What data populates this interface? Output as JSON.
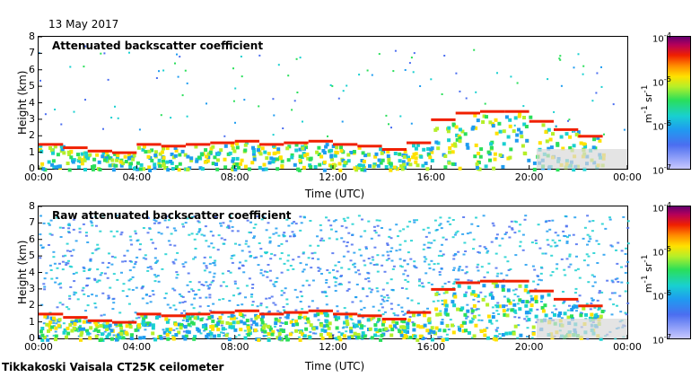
{
  "header": {
    "date": "13 May 2017"
  },
  "footer": {
    "site": "Tikkakoski Vaisala CT25K ceilometer"
  },
  "chart_data": [
    {
      "type": "heatmap",
      "title": "Attenuated backscatter coefficient",
      "xlabel": "Time (UTC)",
      "ylabel": "Height (km)",
      "xticks": [
        "00:00",
        "04:00",
        "08:00",
        "12:00",
        "16:00",
        "20:00",
        "00:00"
      ],
      "yticks": [
        "0",
        "1",
        "2",
        "3",
        "4",
        "5",
        "6",
        "7",
        "8"
      ],
      "xlim_hours": [
        0,
        24
      ],
      "ylim_km": [
        0,
        8
      ],
      "colorbar": {
        "ticks": [
          "10-4",
          "10-5",
          "10-6",
          "10-7"
        ],
        "unit": "m-1 sr-1",
        "range": [
          1e-07,
          0.0001
        ],
        "scale": "log"
      },
      "cloud_base_km": [
        [
          0.5,
          1.5
        ],
        [
          1.5,
          1.3
        ],
        [
          2.5,
          1.1
        ],
        [
          3.5,
          1.0
        ],
        [
          4.5,
          1.5
        ],
        [
          5.5,
          1.4
        ],
        [
          6.5,
          1.5
        ],
        [
          7.5,
          1.6
        ],
        [
          8.5,
          1.7
        ],
        [
          9.5,
          1.5
        ],
        [
          10.5,
          1.6
        ],
        [
          11.5,
          1.7
        ],
        [
          12.5,
          1.5
        ],
        [
          13.5,
          1.4
        ],
        [
          14.5,
          1.2
        ],
        [
          15.5,
          1.6
        ],
        [
          16.5,
          3.0
        ],
        [
          17.5,
          3.4
        ],
        [
          18.5,
          3.5
        ],
        [
          19.5,
          3.5
        ],
        [
          20.5,
          2.9
        ],
        [
          21.5,
          2.4
        ],
        [
          22.5,
          2.0
        ]
      ]
    },
    {
      "type": "heatmap",
      "title": "Raw attenuated backscatter coefficient",
      "xlabel": "Time (UTC)",
      "ylabel": "Height (km)",
      "xticks": [
        "00:00",
        "04:00",
        "08:00",
        "12:00",
        "16:00",
        "20:00",
        "00:00"
      ],
      "yticks": [
        "0",
        "1",
        "2",
        "3",
        "4",
        "5",
        "6",
        "7",
        "8"
      ],
      "xlim_hours": [
        0,
        24
      ],
      "ylim_km": [
        0,
        8
      ],
      "colorbar": {
        "ticks": [
          "10-4",
          "10-5",
          "10-6",
          "10-7"
        ],
        "unit": "m-1 sr-1",
        "range": [
          1e-07,
          0.0001
        ],
        "scale": "log"
      },
      "cloud_base_km": [
        [
          0.5,
          1.5
        ],
        [
          1.5,
          1.3
        ],
        [
          2.5,
          1.1
        ],
        [
          3.5,
          1.0
        ],
        [
          4.5,
          1.5
        ],
        [
          5.5,
          1.4
        ],
        [
          6.5,
          1.5
        ],
        [
          7.5,
          1.6
        ],
        [
          8.5,
          1.7
        ],
        [
          9.5,
          1.5
        ],
        [
          10.5,
          1.6
        ],
        [
          11.5,
          1.7
        ],
        [
          12.5,
          1.5
        ],
        [
          13.5,
          1.4
        ],
        [
          14.5,
          1.2
        ],
        [
          15.5,
          1.6
        ],
        [
          16.5,
          3.0
        ],
        [
          17.5,
          3.4
        ],
        [
          18.5,
          3.5
        ],
        [
          19.5,
          3.5
        ],
        [
          20.5,
          2.9
        ],
        [
          21.5,
          2.4
        ],
        [
          22.5,
          2.0
        ]
      ]
    }
  ]
}
